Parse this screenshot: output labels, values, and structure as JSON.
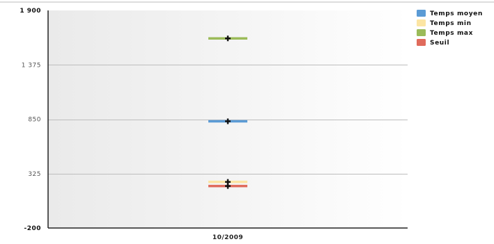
{
  "colors": {
    "temps_moyen": "#5b9bd5",
    "temps_min": "#fce5a3",
    "temps_max": "#9bbb59",
    "seuil": "#e06b5c",
    "grid": "#bdbdbd",
    "marker": "#111111"
  },
  "chart_data": {
    "type": "line",
    "title": "",
    "xlabel": "",
    "ylabel": "",
    "categories": [
      "10/2009"
    ],
    "ylim": [
      -200,
      1900
    ],
    "yticks": [
      -200,
      325,
      850,
      1375,
      1900
    ],
    "ytick_labels": [
      "-200",
      "325",
      "850",
      "1 375",
      "1 900"
    ],
    "grid": true,
    "legend_position": "right",
    "series": [
      {
        "name": "Temps moyen",
        "values": [
          830
        ],
        "color_key": "temps_moyen"
      },
      {
        "name": "Temps min",
        "values": [
          245
        ],
        "color_key": "temps_min"
      },
      {
        "name": "Temps max",
        "values": [
          1630
        ],
        "color_key": "temps_max"
      },
      {
        "name": "Seuil",
        "values": [
          205
        ],
        "color_key": "seuil"
      }
    ]
  }
}
